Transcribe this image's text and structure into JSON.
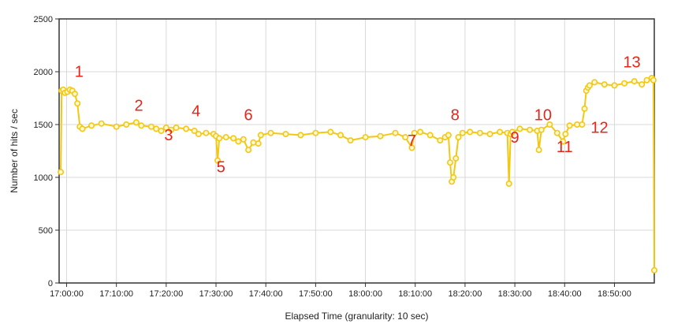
{
  "chart_data": {
    "type": "line",
    "title": "",
    "xlabel": "Elapsed Time (granularity: 10 sec)",
    "ylabel": "Number of hits / sec",
    "ylim": [
      0,
      2500
    ],
    "yticks": [
      "0",
      "500",
      "1000",
      "1500",
      "2000",
      "2500"
    ],
    "xlim": [
      "16:58:30",
      "18:58:00"
    ],
    "xticks": [
      "17:00:00",
      "17:10:00",
      "17:20:00",
      "17:30:00",
      "17:40:00",
      "17:50:00",
      "18:00:00",
      "18:10:00",
      "18:20:00",
      "18:30:00",
      "18:40:00",
      "18:50:00"
    ],
    "grid": true,
    "legend": "none",
    "line_color": "#f2c811",
    "annotation_color": "#e8241a",
    "series": [
      {
        "x": [
          "16:58:50",
          "16:59:00",
          "16:59:20",
          "16:59:40",
          "17:00:10",
          "17:00:40",
          "17:01:10",
          "17:01:40",
          "17:02:10",
          "17:02:40",
          "17:03:10",
          "17:05:00",
          "17:07:00",
          "17:10:00",
          "17:12:00",
          "17:14:00",
          "17:15:00",
          "17:17:00",
          "17:18:00",
          "17:19:00",
          "17:20:00",
          "17:21:00",
          "17:22:00",
          "17:24:00",
          "17:25:40",
          "17:26:30",
          "17:28:00",
          "17:29:30",
          "17:30:00",
          "17:30:20",
          "17:30:40",
          "17:32:00",
          "17:33:30",
          "17:34:30",
          "17:35:30",
          "17:36:30",
          "17:37:30",
          "17:38:30",
          "17:39:00",
          "17:41:00",
          "17:44:00",
          "17:47:00",
          "17:50:00",
          "17:53:00",
          "17:55:00",
          "17:57:00",
          "18:00:00",
          "18:03:00",
          "18:06:00",
          "18:08:00",
          "18:09:20",
          "18:09:50",
          "18:11:00",
          "18:13:00",
          "18:15:00",
          "18:16:00",
          "18:16:40",
          "18:17:00",
          "18:17:20",
          "18:17:40",
          "18:18:10",
          "18:18:40",
          "18:19:30",
          "18:21:00",
          "18:23:00",
          "18:25:00",
          "18:27:00",
          "18:28:30",
          "18:28:50",
          "18:29:10",
          "18:29:30",
          "18:31:00",
          "18:33:00",
          "18:34:30",
          "18:34:50",
          "18:35:20",
          "18:37:00",
          "18:38:30",
          "18:39:40",
          "18:40:10",
          "18:41:00",
          "18:42:30",
          "18:43:30",
          "18:44:00",
          "18:44:20",
          "18:44:40",
          "18:45:00",
          "18:46:00",
          "18:48:00",
          "18:50:00",
          "18:52:00",
          "18:54:00",
          "18:55:30",
          "18:56:30",
          "18:57:30",
          "18:57:50",
          "18:58:00"
        ],
        "values": [
          1050,
          1820,
          1830,
          1800,
          1810,
          1830,
          1820,
          1790,
          1700,
          1480,
          1460,
          1490,
          1510,
          1480,
          1500,
          1520,
          1490,
          1480,
          1460,
          1440,
          1470,
          1450,
          1470,
          1460,
          1440,
          1410,
          1420,
          1410,
          1390,
          1160,
          1370,
          1380,
          1370,
          1340,
          1360,
          1260,
          1330,
          1320,
          1400,
          1420,
          1410,
          1400,
          1420,
          1430,
          1400,
          1350,
          1380,
          1390,
          1420,
          1380,
          1280,
          1420,
          1430,
          1400,
          1350,
          1380,
          1400,
          1140,
          960,
          1000,
          1180,
          1380,
          1420,
          1430,
          1420,
          1410,
          1430,
          1420,
          940,
          1410,
          1430,
          1460,
          1450,
          1440,
          1260,
          1450,
          1500,
          1420,
          1340,
          1410,
          1490,
          1500,
          1500,
          1650,
          1820,
          1850,
          1870,
          1900,
          1880,
          1870,
          1890,
          1910,
          1880,
          1920,
          1940,
          1920,
          120
        ]
      }
    ],
    "annotations": [
      {
        "label": "1",
        "x": "17:02:30",
        "y": 1950
      },
      {
        "label": "2",
        "x": "17:14:30",
        "y": 1630
      },
      {
        "label": "3",
        "x": "17:20:30",
        "y": 1350
      },
      {
        "label": "4",
        "x": "17:26:00",
        "y": 1580
      },
      {
        "label": "5",
        "x": "17:31:00",
        "y": 1050
      },
      {
        "label": "6",
        "x": "17:36:30",
        "y": 1540
      },
      {
        "label": "7",
        "x": "18:09:20",
        "y": 1300
      },
      {
        "label": "8",
        "x": "18:18:00",
        "y": 1540
      },
      {
        "label": "9",
        "x": "18:30:00",
        "y": 1330
      },
      {
        "label": "10",
        "x": "18:35:40",
        "y": 1540
      },
      {
        "label": "11",
        "x": "18:40:00",
        "y": 1240
      },
      {
        "label": "12",
        "x": "18:47:00",
        "y": 1420
      },
      {
        "label": "13",
        "x": "18:53:30",
        "y": 2040
      }
    ]
  }
}
